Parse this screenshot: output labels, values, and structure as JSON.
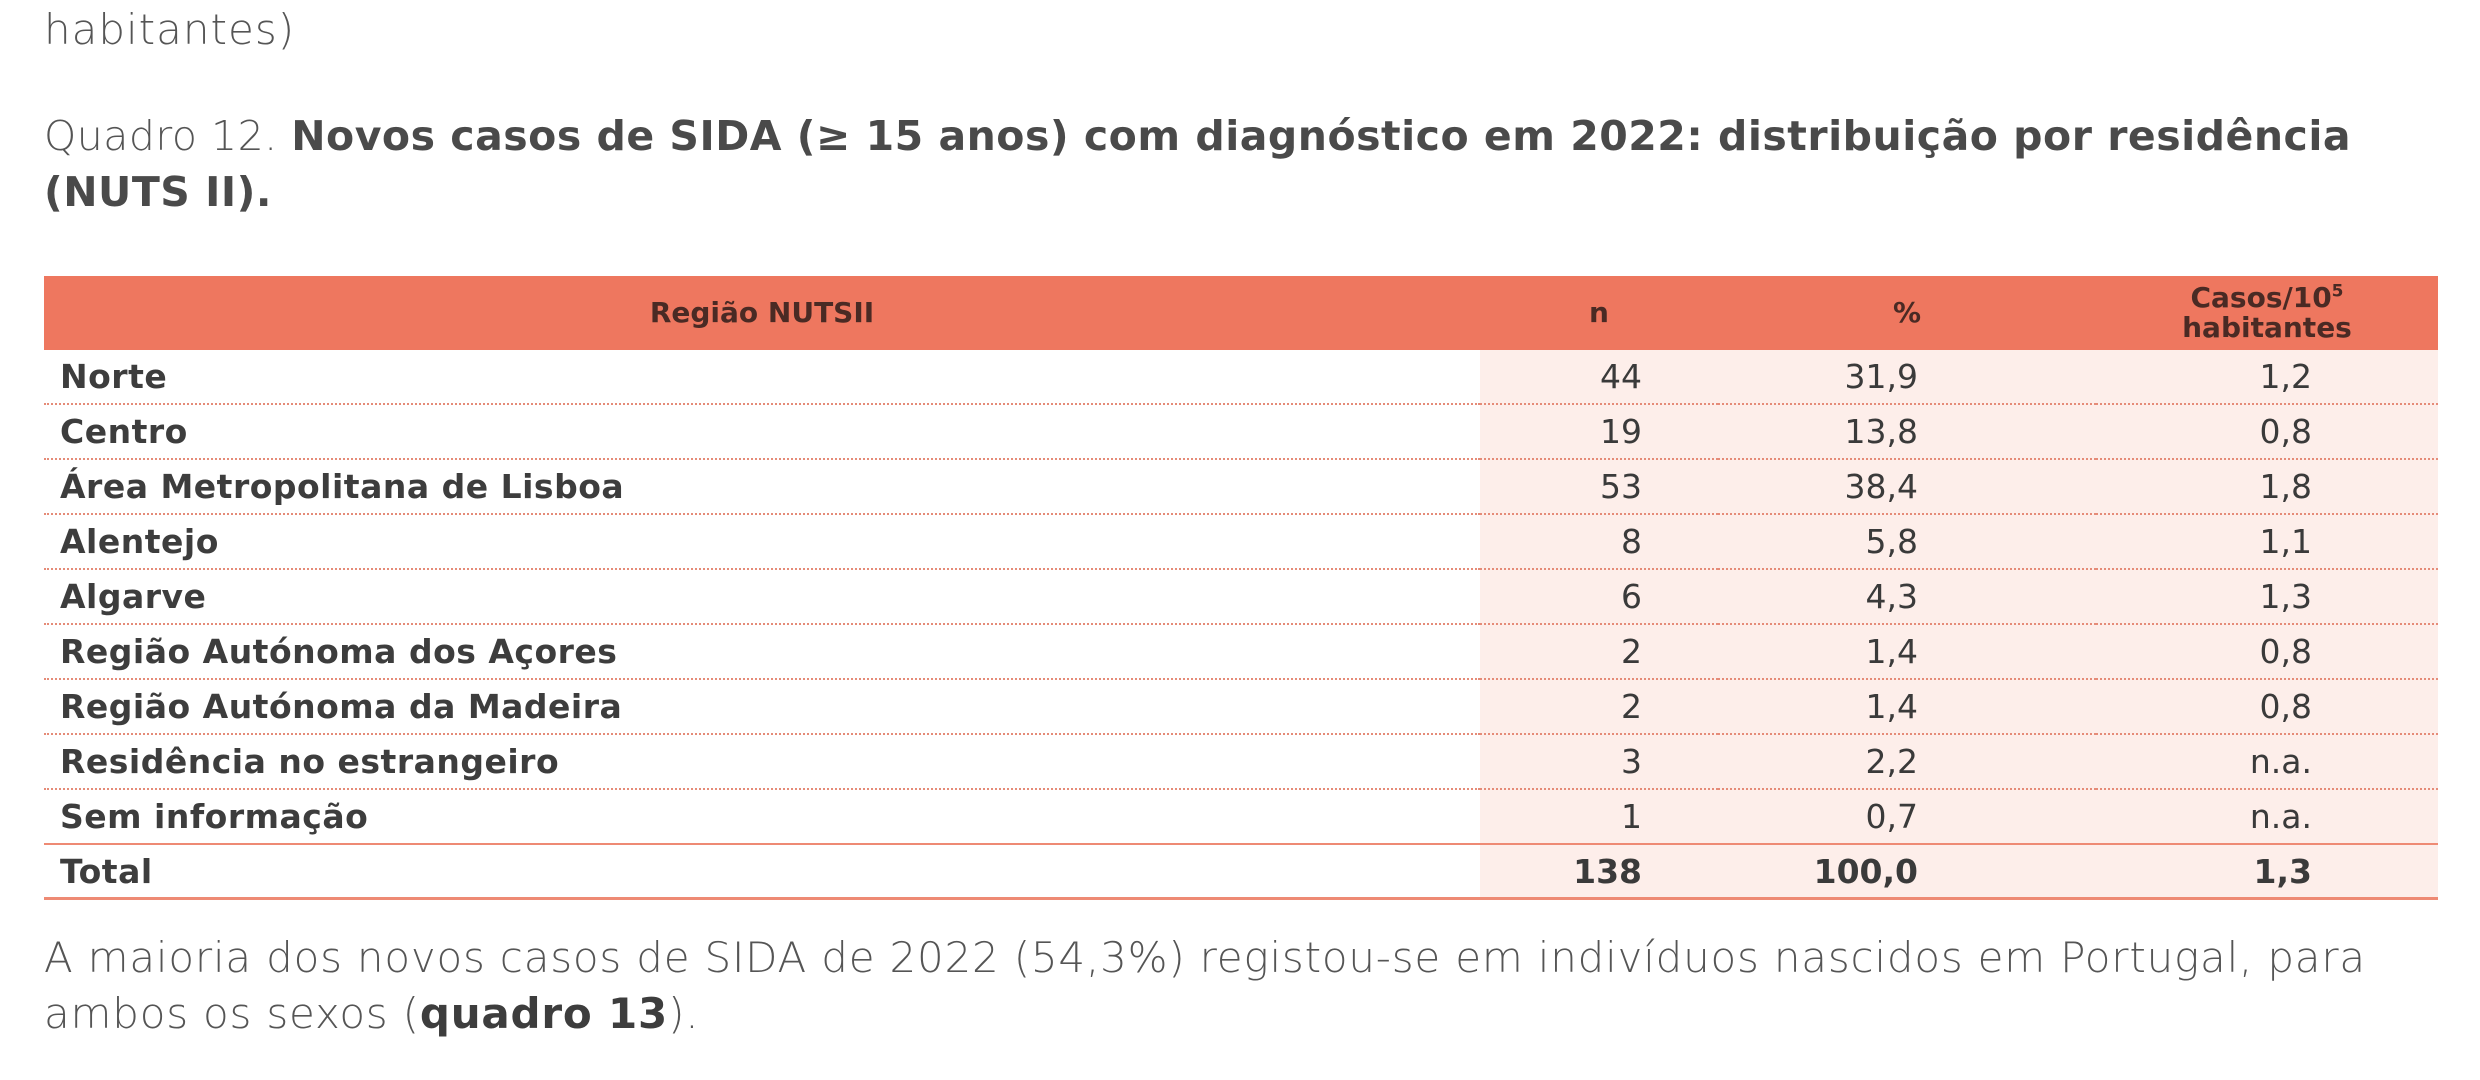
{
  "top_fragment": "habitantes)",
  "caption": {
    "label": "Quadro 12. ",
    "title": "Novos casos de SIDA (≥ 15 anos) com diagnóstico em 2022: distribuição por residência (NUTS II)."
  },
  "table": {
    "headers": {
      "region": "Região NUTSII",
      "n": "n",
      "pct": "%",
      "rate_line1": "Casos/10",
      "rate_sup": "5",
      "rate_line2": "habitantes"
    },
    "rows": [
      {
        "region": "Norte",
        "n": "44",
        "pct": "31,9",
        "rate": "1,2"
      },
      {
        "region": "Centro",
        "n": "19",
        "pct": "13,8",
        "rate": "0,8"
      },
      {
        "region": "Área Metropolitana de Lisboa",
        "n": "53",
        "pct": "38,4",
        "rate": "1,8"
      },
      {
        "region": "Alentejo",
        "n": "8",
        "pct": "5,8",
        "rate": "1,1"
      },
      {
        "region": "Algarve",
        "n": "6",
        "pct": "4,3",
        "rate": "1,3"
      },
      {
        "region": "Região Autónoma dos Açores",
        "n": "2",
        "pct": "1,4",
        "rate": "0,8"
      },
      {
        "region": "Região Autónoma da Madeira",
        "n": "2",
        "pct": "1,4",
        "rate": "0,8"
      },
      {
        "region": "Residência no estrangeiro",
        "n": "3",
        "pct": "2,2",
        "rate": "n.a."
      },
      {
        "region": "Sem informação",
        "n": "1",
        "pct": "0,7",
        "rate": "n.a."
      }
    ],
    "total": {
      "region": "Total",
      "n": "138",
      "pct": "100,0",
      "rate": "1,3"
    }
  },
  "footer": {
    "text_before": "A maioria dos novos casos de SIDA de 2022 (54,3%) registou-se em indivíduos nascidos em Portugal, para ambos os sexos (",
    "ref": "quadro 13",
    "text_after": ")."
  },
  "colors": {
    "header_bg": "#ee775f",
    "numeric_cell_bg": "#fdeeea",
    "row_rule": "#e58b78"
  }
}
